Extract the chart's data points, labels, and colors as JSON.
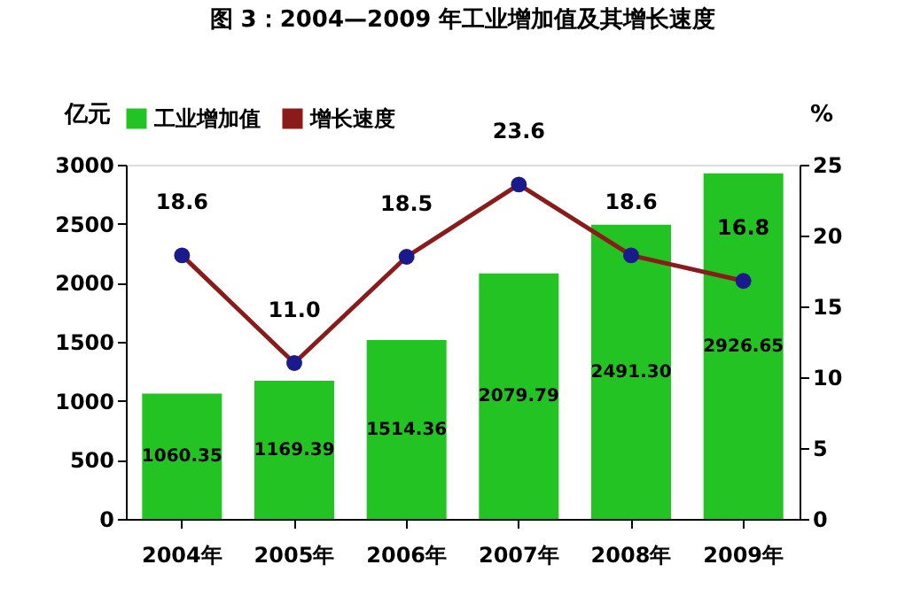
{
  "chart_data": {
    "type": "bar",
    "title": "图 3：2004—2009 年工业增加值及其增长速度",
    "categories": [
      "2004年",
      "2005年",
      "2006年",
      "2007年",
      "2008年",
      "2009年"
    ],
    "series": [
      {
        "name": "工业增加值",
        "type": "bar",
        "color": "#22c322",
        "values": [
          1060.35,
          1169.39,
          1514.36,
          2079.79,
          2491.3,
          2926.65
        ],
        "value_labels": [
          "1060.35",
          "1169.39",
          "1514.36",
          "2079.79",
          "2491.30",
          "2926.65"
        ]
      },
      {
        "name": "增长速度",
        "type": "line",
        "axis": "y2",
        "color": "#8b1a1a",
        "values": [
          18.6,
          11.0,
          18.5,
          23.6,
          18.6,
          16.8
        ],
        "value_labels": [
          "18.6",
          "11.0",
          "18.5",
          "23.6",
          "18.6",
          "16.8"
        ]
      }
    ],
    "ylabel": "亿元",
    "y2label": "%",
    "ylim": [
      0,
      3000
    ],
    "yticks": [
      0,
      500,
      1000,
      1500,
      2000,
      2500,
      3000
    ],
    "y2lim": [
      0,
      25
    ],
    "y2ticks": [
      0,
      5,
      10,
      15,
      20,
      25
    ],
    "legend": "top",
    "marker": "circle",
    "grid": false
  }
}
